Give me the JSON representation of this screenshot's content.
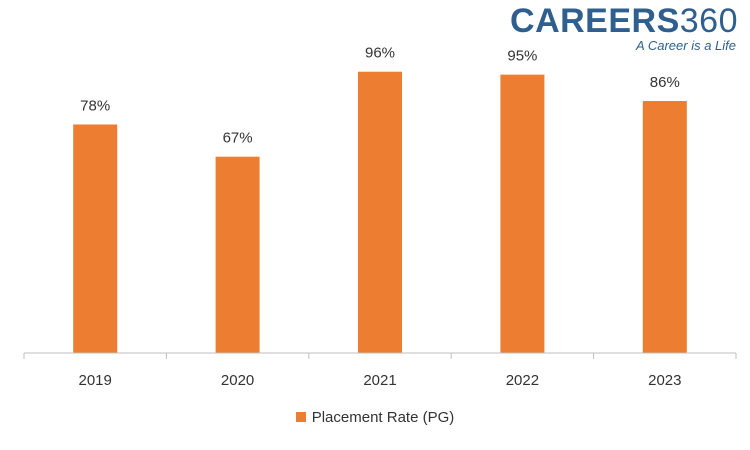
{
  "logo": {
    "brand": "CAREERS",
    "number": "360",
    "tagline": "A Career is a Life"
  },
  "colors": {
    "bar": "#ED7D31",
    "axis": "#BFBFBF",
    "text": "#333333"
  },
  "chart_data": {
    "type": "bar",
    "categories": [
      "2019",
      "2020",
      "2021",
      "2022",
      "2023"
    ],
    "series": [
      {
        "name": "Placement Rate (PG)",
        "values": [
          78,
          67,
          96,
          95,
          86
        ]
      }
    ],
    "data_labels": [
      "78%",
      "67%",
      "96%",
      "95%",
      "86%"
    ],
    "ylim": [
      0,
      100
    ],
    "grid": false,
    "legend": "bottom"
  }
}
